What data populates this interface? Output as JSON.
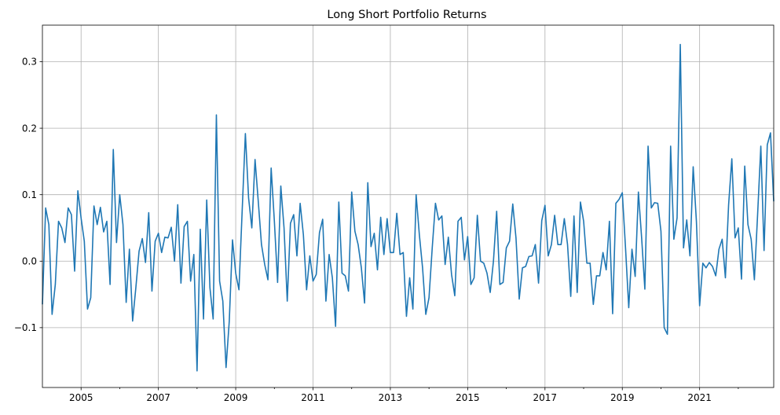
{
  "chart_data": {
    "type": "line",
    "title": "Long Short Portfolio Returns",
    "xlabel": "",
    "ylabel": "",
    "grid": true,
    "line_color": "#1f77b4",
    "xlim": [
      "2004-01",
      "2022-12"
    ],
    "ylim": [
      -0.19,
      0.355
    ],
    "y_ticks": [
      -0.1,
      0.0,
      0.1,
      0.2,
      0.3
    ],
    "y_tick_labels": [
      "−0.1",
      "0.0",
      "0.1",
      "0.2",
      "0.3"
    ],
    "x_ticks": [
      "2005-01",
      "2007-01",
      "2009-01",
      "2011-01",
      "2013-01",
      "2015-01",
      "2017-01",
      "2019-01",
      "2021-01"
    ],
    "x_tick_labels": [
      "2005",
      "2007",
      "2009",
      "2011",
      "2013",
      "2015",
      "2017",
      "2019",
      "2021"
    ],
    "x_minor_ticks": [
      "2006-01",
      "2008-01",
      "2010-01",
      "2012-01",
      "2014-01",
      "2016-01",
      "2018-01",
      "2020-01",
      "2022-01"
    ],
    "series": [
      {
        "start": "2004-01",
        "frequency": "monthly",
        "values": [
          -0.065,
          0.08,
          0.055,
          -0.08,
          -0.035,
          0.06,
          0.05,
          0.028,
          0.08,
          0.07,
          -0.015,
          0.106,
          0.065,
          0.03,
          -0.072,
          -0.055,
          0.083,
          0.055,
          0.081,
          0.044,
          0.06,
          -0.035,
          0.168,
          0.028,
          0.1,
          0.055,
          -0.062,
          0.018,
          -0.09,
          -0.04,
          0.015,
          0.034,
          -0.002,
          0.073,
          -0.045,
          0.03,
          0.042,
          0.013,
          0.036,
          0.035,
          0.051,
          0.0,
          0.085,
          -0.033,
          0.052,
          0.06,
          -0.03,
          0.01,
          -0.165,
          0.048,
          -0.087,
          0.092,
          -0.04,
          -0.087,
          0.22,
          -0.03,
          -0.06,
          -0.16,
          -0.09,
          0.032,
          -0.018,
          -0.043,
          0.075,
          0.192,
          0.095,
          0.05,
          0.153,
          0.09,
          0.025,
          -0.005,
          -0.028,
          0.14,
          0.06,
          -0.032,
          0.113,
          0.05,
          -0.06,
          0.057,
          0.07,
          0.008,
          0.087,
          0.04,
          -0.043,
          0.008,
          -0.03,
          -0.02,
          0.043,
          0.063,
          -0.06,
          0.01,
          -0.025,
          -0.098,
          0.089,
          -0.018,
          -0.022,
          -0.045,
          0.104,
          0.045,
          0.025,
          -0.01,
          -0.063,
          0.118,
          0.022,
          0.042,
          -0.013,
          0.066,
          0.01,
          0.064,
          0.013,
          0.013,
          0.072,
          0.01,
          0.013,
          -0.083,
          -0.025,
          -0.072,
          0.1,
          0.04,
          -0.01,
          -0.08,
          -0.055,
          0.02,
          0.087,
          0.062,
          0.068,
          -0.005,
          0.036,
          -0.02,
          -0.052,
          0.06,
          0.066,
          0.002,
          0.037,
          -0.035,
          -0.025,
          0.069,
          0.0,
          -0.003,
          -0.018,
          -0.047,
          0.0,
          0.075,
          -0.035,
          -0.032,
          0.02,
          0.03,
          0.086,
          0.035,
          -0.057,
          -0.01,
          -0.008,
          0.007,
          0.008,
          0.025,
          -0.033,
          0.061,
          0.084,
          0.008,
          0.025,
          0.069,
          0.025,
          0.025,
          0.064,
          0.025,
          -0.053,
          0.068,
          -0.047,
          0.089,
          0.06,
          -0.003,
          -0.003,
          -0.065,
          -0.022,
          -0.022,
          0.013,
          -0.013,
          0.06,
          -0.079,
          0.087,
          0.093,
          0.103,
          0.02,
          -0.07,
          0.018,
          -0.023,
          0.104,
          0.035,
          -0.042,
          0.173,
          0.08,
          0.088,
          0.087,
          0.045,
          -0.1,
          -0.11,
          0.173,
          0.033,
          0.065,
          0.326,
          0.02,
          0.062,
          0.008,
          0.142,
          0.06,
          -0.067,
          -0.003,
          -0.01,
          -0.002,
          -0.008,
          -0.022,
          0.018,
          0.033,
          -0.025,
          0.085,
          0.154,
          0.035,
          0.05,
          -0.027,
          0.143,
          0.055,
          0.033,
          -0.028,
          0.07,
          0.173,
          0.016,
          0.175,
          0.193,
          0.09
        ]
      }
    ]
  }
}
